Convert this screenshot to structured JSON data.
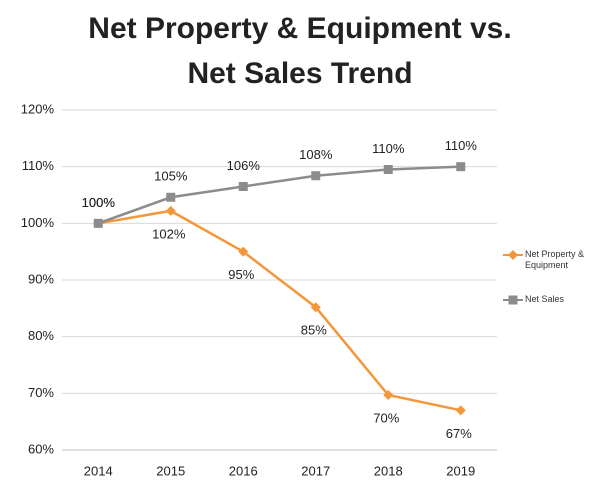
{
  "chart_data": {
    "type": "line",
    "title": "Net Property & Equipment vs. Net Sales Trend",
    "categories": [
      "2014",
      "2015",
      "2016",
      "2017",
      "2018",
      "2019"
    ],
    "series": [
      {
        "name": "Net Property & Equipment",
        "color": "#f4973a",
        "marker": "diamond",
        "values": [
          100,
          102.2,
          95,
          85.2,
          69.7,
          67
        ],
        "value_labels": [
          "100%",
          "102%",
          "95%",
          "85%",
          "70%",
          "67%"
        ]
      },
      {
        "name": "Net Sales",
        "color": "#8c8c8c",
        "marker": "square",
        "values": [
          100,
          104.6,
          106.5,
          108.4,
          109.5,
          110
        ],
        "value_labels": [
          "100%",
          "105%",
          "106%",
          "108%",
          "110%",
          "110%"
        ]
      }
    ],
    "ylim": [
      60,
      120
    ],
    "yticks": [
      {
        "value": 60,
        "label": "60%"
      },
      {
        "value": 70,
        "label": "70%"
      },
      {
        "value": 80,
        "label": "80%"
      },
      {
        "value": 90,
        "label": "90%"
      },
      {
        "value": 100,
        "label": "100%"
      },
      {
        "value": 110,
        "label": "110%"
      },
      {
        "value": 120,
        "label": "120%"
      }
    ],
    "grid": true,
    "legend": "right"
  }
}
